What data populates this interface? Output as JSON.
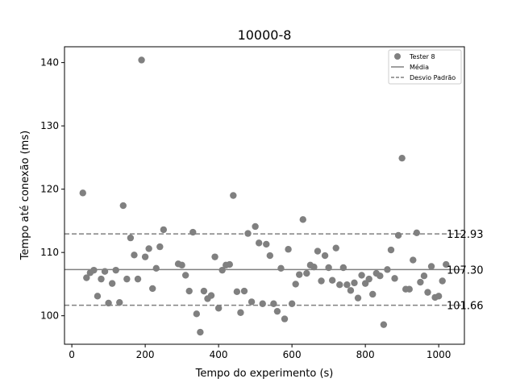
{
  "chart_data": {
    "type": "scatter",
    "title": "10000-8",
    "xlabel": "Tempo do experimento (s)",
    "ylabel": "Tempo até conexão (ms)",
    "xlim": [
      -20,
      1070
    ],
    "ylim": [
      95.5,
      142.5
    ],
    "xticks": [
      0,
      200,
      400,
      600,
      800,
      1000
    ],
    "yticks": [
      100,
      110,
      120,
      130,
      140
    ],
    "grid": false,
    "legend_position": "top-right",
    "colors": {
      "points": "#808080",
      "lines": "#808080"
    },
    "series": [
      {
        "name": "Tester 8",
        "x": [
          30,
          40,
          50,
          60,
          70,
          80,
          90,
          100,
          110,
          120,
          130,
          140,
          150,
          160,
          170,
          180,
          190,
          200,
          210,
          220,
          230,
          240,
          250,
          290,
          300,
          310,
          320,
          330,
          340,
          350,
          360,
          370,
          380,
          390,
          400,
          410,
          420,
          430,
          440,
          450,
          460,
          470,
          480,
          490,
          500,
          510,
          520,
          530,
          540,
          550,
          560,
          570,
          580,
          590,
          600,
          610,
          620,
          630,
          640,
          650,
          660,
          670,
          680,
          690,
          700,
          710,
          720,
          730,
          740,
          750,
          760,
          770,
          780,
          790,
          800,
          810,
          820,
          830,
          840,
          850,
          860,
          870,
          880,
          890,
          900,
          910,
          920,
          930,
          940,
          950,
          960,
          970,
          980,
          990,
          1000,
          1010,
          1020
        ],
        "y": [
          119.4,
          106.0,
          106.8,
          107.2,
          103.1,
          105.8,
          107.0,
          102.0,
          105.1,
          107.2,
          102.1,
          117.4,
          105.8,
          112.3,
          109.6,
          105.8,
          140.4,
          109.3,
          110.6,
          104.3,
          107.5,
          110.9,
          113.6,
          108.2,
          108.0,
          106.4,
          103.9,
          113.2,
          100.3,
          97.4,
          103.9,
          102.7,
          103.2,
          109.3,
          101.2,
          107.2,
          108.0,
          108.1,
          119.0,
          103.8,
          100.5,
          103.9,
          113.0,
          102.2,
          114.1,
          111.5,
          101.9,
          111.3,
          109.5,
          101.9,
          100.7,
          107.5,
          99.5,
          110.5,
          101.9,
          105.0,
          106.5,
          115.2,
          106.7,
          108.0,
          107.7,
          110.2,
          105.5,
          109.5,
          107.6,
          105.6,
          110.7,
          104.9,
          107.6,
          104.9,
          104.0,
          105.2,
          102.8,
          106.4,
          105.1,
          105.8,
          103.4,
          106.7,
          106.3,
          98.6,
          107.3,
          110.4,
          105.9,
          112.7,
          124.9,
          104.2,
          104.2,
          108.8,
          113.1,
          105.3,
          106.3,
          103.7,
          107.8,
          102.9,
          103.1,
          105.5,
          108.1
        ]
      }
    ],
    "reference_lines": [
      {
        "name": "Média",
        "value": 107.3,
        "label": "107.30",
        "style": "solid"
      },
      {
        "name": "Desvio Padrão",
        "value": 112.93,
        "label": "112.93",
        "style": "dashed"
      },
      {
        "name": "Desvio Padrão",
        "value": 101.66,
        "label": "101.66",
        "style": "dashed"
      }
    ],
    "legend": {
      "entries": [
        {
          "label": "Tester 8",
          "kind": "marker"
        },
        {
          "label": "Média",
          "kind": "solid-line"
        },
        {
          "label": "Desvio Padrão",
          "kind": "dashed-line"
        }
      ]
    }
  }
}
